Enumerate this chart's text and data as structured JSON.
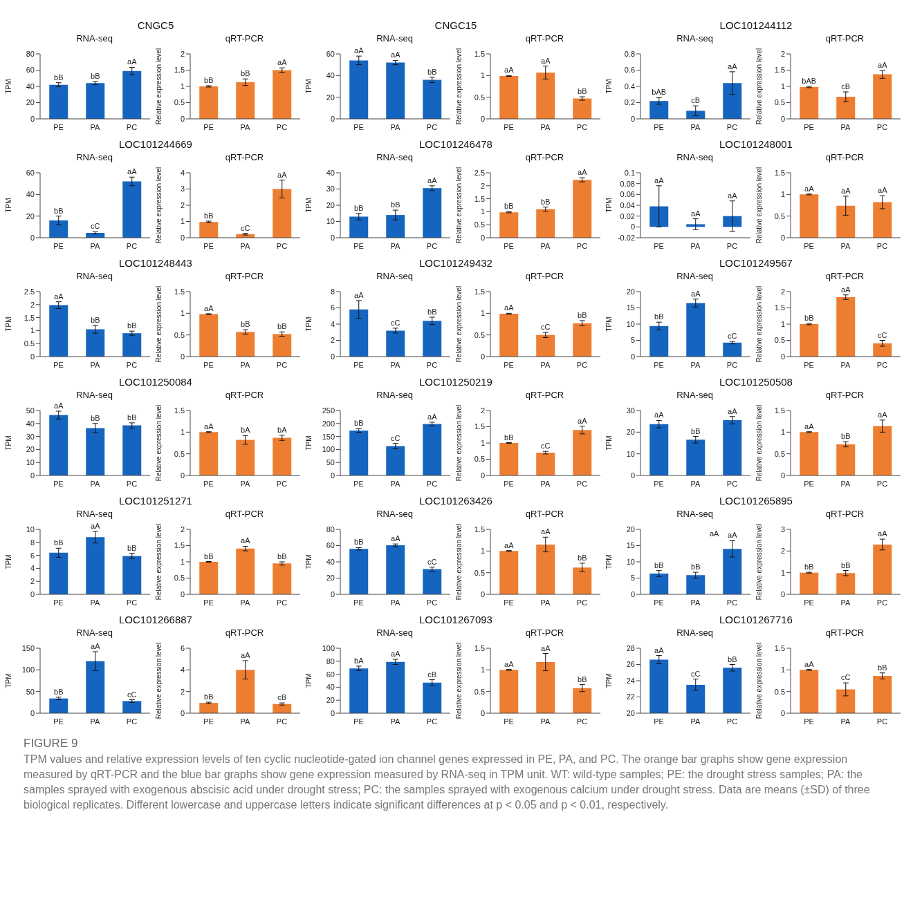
{
  "chart_data": [
    {
      "type": "bar",
      "title": "CNGC5",
      "subtitle": "RNA-seq",
      "ylabel": "TPM",
      "categories": [
        "PE",
        "PA",
        "PC"
      ],
      "values": [
        42,
        44,
        59
      ],
      "errors": [
        2.5,
        2,
        4.5
      ],
      "value_labels": [
        "bB",
        "bB",
        "aA"
      ],
      "color": "#1565c0",
      "ylim": [
        0,
        80
      ],
      "yticks": [
        0,
        20,
        40,
        60,
        80
      ]
    },
    {
      "type": "bar",
      "subtitle": "qRT-PCR",
      "ylabel": "Relative expression level",
      "categories": [
        "PE",
        "PA",
        "PC"
      ],
      "values": [
        1,
        1.13,
        1.5
      ],
      "errors": [
        0.02,
        0.1,
        0.07
      ],
      "value_labels": [
        "bB",
        "bB",
        "aA"
      ],
      "color": "#ed7d31",
      "ylim": [
        0,
        2
      ],
      "yticks": [
        0,
        0.5,
        1,
        1.5,
        2
      ]
    },
    {
      "type": "bar",
      "title": "CNGC15",
      "subtitle": "RNA-seq",
      "ylabel": "TPM",
      "categories": [
        "PE",
        "PA",
        "PC"
      ],
      "values": [
        54,
        52,
        36
      ],
      "errors": [
        4,
        2,
        2.5
      ],
      "value_labels": [
        "aA",
        "aA",
        "bB"
      ],
      "color": "#1565c0",
      "ylim": [
        0,
        60
      ],
      "yticks": [
        0,
        20,
        40,
        60
      ]
    },
    {
      "type": "bar",
      "subtitle": "qRT-PCR",
      "ylabel": "Relative expression level",
      "categories": [
        "PE",
        "PA",
        "PC"
      ],
      "values": [
        0.99,
        1.07,
        0.47
      ],
      "errors": [
        0.01,
        0.15,
        0.04
      ],
      "value_labels": [
        "aA",
        "aA",
        "bB"
      ],
      "color": "#ed7d31",
      "ylim": [
        0,
        1.5
      ],
      "yticks": [
        0,
        0.5,
        1,
        1.5
      ]
    },
    {
      "type": "bar",
      "title": "LOC101244112",
      "subtitle": "RNA-seq",
      "ylabel": "TPM",
      "categories": [
        "PE",
        "PA",
        "PC"
      ],
      "values": [
        0.22,
        0.1,
        0.44
      ],
      "errors": [
        0.04,
        0.06,
        0.14
      ],
      "value_labels": [
        "bAB",
        "cB",
        "aA"
      ],
      "color": "#1565c0",
      "ylim": [
        0,
        0.8
      ],
      "yticks": [
        0,
        0.2,
        0.4,
        0.6,
        0.8
      ]
    },
    {
      "type": "bar",
      "subtitle": "qRT-PCR",
      "ylabel": "Relative expression level",
      "categories": [
        "PE",
        "PA",
        "PC"
      ],
      "values": [
        0.98,
        0.68,
        1.37
      ],
      "errors": [
        0.02,
        0.15,
        0.12
      ],
      "value_labels": [
        "bAB",
        "cB",
        "aA"
      ],
      "color": "#ed7d31",
      "ylim": [
        0,
        2
      ],
      "yticks": [
        0,
        0.5,
        1,
        1.5,
        2
      ]
    },
    {
      "type": "bar",
      "title": "LOC101244669",
      "subtitle": "RNA-seq",
      "ylabel": "TPM",
      "categories": [
        "PE",
        "PA",
        "PC"
      ],
      "values": [
        16,
        4.5,
        52
      ],
      "errors": [
        4,
        1,
        4
      ],
      "value_labels": [
        "bB",
        "cC",
        "aA"
      ],
      "color": "#1565c0",
      "ylim": [
        0,
        60
      ],
      "yticks": [
        0,
        20,
        40,
        60
      ]
    },
    {
      "type": "bar",
      "subtitle": "qRT-PCR",
      "ylabel": "Relative expression level",
      "categories": [
        "PE",
        "PA",
        "PC"
      ],
      "values": [
        0.97,
        0.22,
        3
      ],
      "errors": [
        0.05,
        0.05,
        0.55
      ],
      "value_labels": [
        "bB",
        "cC",
        "aA"
      ],
      "color": "#ed7d31",
      "ylim": [
        0,
        4
      ],
      "yticks": [
        0,
        1,
        2,
        3,
        4
      ]
    },
    {
      "type": "bar",
      "title": "LOC101246478",
      "subtitle": "RNA-seq",
      "ylabel": "TPM",
      "categories": [
        "PE",
        "PA",
        "PC"
      ],
      "values": [
        13,
        14,
        30.5
      ],
      "errors": [
        2,
        3,
        1.5
      ],
      "value_labels": [
        "bB",
        "bB",
        "aA"
      ],
      "color": "#1565c0",
      "ylim": [
        0,
        40
      ],
      "yticks": [
        0,
        10,
        20,
        30,
        40
      ]
    },
    {
      "type": "bar",
      "subtitle": "qRT-PCR",
      "ylabel": "Relative expression level",
      "categories": [
        "PE",
        "PA",
        "PC"
      ],
      "values": [
        0.98,
        1.1,
        2.23
      ],
      "errors": [
        0.02,
        0.08,
        0.08
      ],
      "value_labels": [
        "bB",
        "bB",
        "aA"
      ],
      "color": "#ed7d31",
      "ylim": [
        0,
        2.5
      ],
      "yticks": [
        0,
        0.5,
        1,
        1.5,
        2,
        2.5
      ]
    },
    {
      "type": "bar",
      "title": "LOC101248001",
      "subtitle": "RNA-seq",
      "ylabel": "TPM",
      "categories": [
        "PE",
        "PA",
        "PC"
      ],
      "values": [
        0.038,
        0.005,
        0.02
      ],
      "errors": [
        0.038,
        0.01,
        0.028
      ],
      "value_labels": [
        "aA",
        "aA",
        "aA"
      ],
      "color": "#1565c0",
      "ylim": [
        -0.02,
        0.1
      ],
      "yticks": [
        -0.02,
        0,
        0.02,
        0.04,
        0.06,
        0.08,
        0.1
      ]
    },
    {
      "type": "bar",
      "subtitle": "qRT-PCR",
      "ylabel": "Relative expression level",
      "categories": [
        "PE",
        "PA",
        "PC"
      ],
      "values": [
        1,
        0.74,
        0.82
      ],
      "errors": [
        0.01,
        0.22,
        0.15
      ],
      "value_labels": [
        "aA",
        "aA",
        "aA"
      ],
      "color": "#ed7d31",
      "ylim": [
        0,
        1.5
      ],
      "yticks": [
        0,
        0.5,
        1,
        1.5
      ]
    },
    {
      "type": "bar",
      "title": "LOC101248443",
      "subtitle": "RNA-seq",
      "ylabel": "TPM",
      "categories": [
        "PE",
        "PA",
        "PC"
      ],
      "values": [
        1.98,
        1.05,
        0.9
      ],
      "errors": [
        0.13,
        0.15,
        0.08
      ],
      "value_labels": [
        "aA",
        "bB",
        "bB"
      ],
      "color": "#1565c0",
      "ylim": [
        0,
        2.5
      ],
      "yticks": [
        0,
        0.5,
        1,
        1.5,
        2,
        2.5
      ]
    },
    {
      "type": "bar",
      "subtitle": "qRT-PCR",
      "ylabel": "Relative expression level",
      "categories": [
        "PE",
        "PA",
        "PC"
      ],
      "values": [
        0.98,
        0.57,
        0.52
      ],
      "errors": [
        0.01,
        0.05,
        0.05
      ],
      "value_labels": [
        "aA",
        "bB",
        "bB"
      ],
      "color": "#ed7d31",
      "ylim": [
        0,
        1.5
      ],
      "yticks": [
        0,
        0.5,
        1,
        1.5
      ]
    },
    {
      "type": "bar",
      "title": "LOC101249432",
      "subtitle": "RNA-seq",
      "ylabel": "TPM",
      "categories": [
        "PE",
        "PA",
        "PC"
      ],
      "values": [
        5.8,
        3.2,
        4.4
      ],
      "errors": [
        1.1,
        0.3,
        0.45
      ],
      "value_labels": [
        "aA",
        "cC",
        "bB"
      ],
      "color": "#1565c0",
      "ylim": [
        0,
        8
      ],
      "yticks": [
        0,
        2,
        4,
        6,
        8
      ]
    },
    {
      "type": "bar",
      "subtitle": "qRT-PCR",
      "ylabel": "Relative expression level",
      "categories": [
        "PE",
        "PA",
        "PC"
      ],
      "values": [
        0.99,
        0.5,
        0.77
      ],
      "errors": [
        0.01,
        0.06,
        0.06
      ],
      "value_labels": [
        "aA",
        "cC",
        "bB"
      ],
      "color": "#ed7d31",
      "ylim": [
        0,
        1.5
      ],
      "yticks": [
        0,
        0.5,
        1,
        1.5
      ]
    },
    {
      "type": "bar",
      "title": "LOC101249567",
      "subtitle": "RNA-seq",
      "ylabel": "TPM",
      "categories": [
        "PE",
        "PA",
        "PC"
      ],
      "values": [
        9.4,
        16.5,
        4.3
      ],
      "errors": [
        1.2,
        1.2,
        0.4
      ],
      "value_labels": [
        "bB",
        "aA",
        "cC"
      ],
      "color": "#1565c0",
      "ylim": [
        0,
        20
      ],
      "yticks": [
        0,
        5,
        10,
        15,
        20
      ]
    },
    {
      "type": "bar",
      "subtitle": "qRT-PCR",
      "ylabel": "Relative expression level",
      "categories": [
        "PE",
        "PA",
        "PC"
      ],
      "values": [
        1,
        1.83,
        0.41
      ],
      "errors": [
        0.02,
        0.07,
        0.09
      ],
      "value_labels": [
        "bB",
        "aA",
        "cC"
      ],
      "color": "#ed7d31",
      "ylim": [
        0,
        2
      ],
      "yticks": [
        0,
        0.5,
        1,
        1.5,
        2
      ]
    },
    {
      "type": "bar",
      "title": "LOC101250084",
      "subtitle": "RNA-seq",
      "ylabel": "TPM",
      "categories": [
        "PE",
        "PA",
        "PC"
      ],
      "values": [
        46.5,
        36.5,
        38.5
      ],
      "errors": [
        3,
        3.5,
        2
      ],
      "value_labels": [
        "aA",
        "bB",
        "bB"
      ],
      "color": "#1565c0",
      "ylim": [
        0,
        50
      ],
      "yticks": [
        0,
        10,
        20,
        30,
        40,
        50
      ]
    },
    {
      "type": "bar",
      "subtitle": "qRT-PCR",
      "ylabel": "Relative expression level",
      "categories": [
        "PE",
        "PA",
        "PC"
      ],
      "values": [
        1,
        0.82,
        0.87
      ],
      "errors": [
        0.01,
        0.1,
        0.06
      ],
      "value_labels": [
        "aA",
        "bA",
        "bA"
      ],
      "color": "#ed7d31",
      "ylim": [
        0,
        1.5
      ],
      "yticks": [
        0,
        0.5,
        1,
        1.5
      ]
    },
    {
      "type": "bar",
      "title": "LOC101250219",
      "subtitle": "RNA-seq",
      "ylabel": "TPM",
      "categories": [
        "PE",
        "PA",
        "PC"
      ],
      "values": [
        173,
        113,
        198
      ],
      "errors": [
        7,
        10,
        7
      ],
      "value_labels": [
        "bB",
        "cC",
        "aA"
      ],
      "color": "#1565c0",
      "ylim": [
        0,
        250
      ],
      "yticks": [
        0,
        50,
        100,
        150,
        200,
        250
      ]
    },
    {
      "type": "bar",
      "subtitle": "qRT-PCR",
      "ylabel": "Relative expression level",
      "categories": [
        "PE",
        "PA",
        "PC"
      ],
      "values": [
        1,
        0.7,
        1.4
      ],
      "errors": [
        0.01,
        0.04,
        0.12
      ],
      "value_labels": [
        "bB",
        "cC",
        "aA"
      ],
      "color": "#ed7d31",
      "ylim": [
        0,
        2
      ],
      "yticks": [
        0,
        0.5,
        1,
        1.5,
        2
      ]
    },
    {
      "type": "bar",
      "title": "LOC101250508",
      "subtitle": "RNA-seq",
      "ylabel": "TPM",
      "categories": [
        "PE",
        "PA",
        "PC"
      ],
      "values": [
        23.7,
        16.5,
        25.5
      ],
      "errors": [
        1.7,
        1.5,
        1.7
      ],
      "value_labels": [
        "aA",
        "bB",
        "aA"
      ],
      "color": "#1565c0",
      "ylim": [
        0,
        30
      ],
      "yticks": [
        0,
        10,
        20,
        30
      ]
    },
    {
      "type": "bar",
      "subtitle": "qRT-PCR",
      "ylabel": "Relative expression level",
      "categories": [
        "PE",
        "PA",
        "PC"
      ],
      "values": [
        1,
        0.72,
        1.14
      ],
      "errors": [
        0.01,
        0.06,
        0.14
      ],
      "value_labels": [
        "aA",
        "bB",
        "aA"
      ],
      "color": "#ed7d31",
      "ylim": [
        0,
        1.5
      ],
      "yticks": [
        0,
        0.5,
        1,
        1.5
      ]
    },
    {
      "type": "bar",
      "title": "LOC101251271",
      "subtitle": "RNA-seq",
      "ylabel": "TPM",
      "categories": [
        "PE",
        "PA",
        "PC"
      ],
      "values": [
        6.4,
        8.8,
        5.9
      ],
      "errors": [
        0.7,
        0.9,
        0.4
      ],
      "value_labels": [
        "bB",
        "aA",
        "bB"
      ],
      "color": "#1565c0",
      "ylim": [
        0,
        10
      ],
      "yticks": [
        0,
        2,
        4,
        6,
        8,
        10
      ]
    },
    {
      "type": "bar",
      "subtitle": "qRT-PCR",
      "ylabel": "Relative expression level",
      "categories": [
        "PE",
        "PA",
        "PC"
      ],
      "values": [
        1,
        1.41,
        0.95
      ],
      "errors": [
        0.01,
        0.07,
        0.05
      ],
      "value_labels": [
        "bB",
        "aA",
        "bB"
      ],
      "color": "#ed7d31",
      "ylim": [
        0,
        2
      ],
      "yticks": [
        0,
        0.5,
        1,
        1.5,
        2
      ]
    },
    {
      "type": "bar",
      "title": "LOC101263426",
      "subtitle": "RNA-seq",
      "ylabel": "TPM",
      "categories": [
        "PE",
        "PA",
        "PC"
      ],
      "values": [
        56,
        60.5,
        31
      ],
      "errors": [
        1.5,
        1.5,
        2.5
      ],
      "value_labels": [
        "bB",
        "aA",
        "cC"
      ],
      "color": "#1565c0",
      "ylim": [
        0,
        80
      ],
      "yticks": [
        0,
        20,
        40,
        60,
        80
      ]
    },
    {
      "type": "bar",
      "subtitle": "qRT-PCR",
      "ylabel": "Relative expression level",
      "categories": [
        "PE",
        "PA",
        "PC"
      ],
      "values": [
        1,
        1.15,
        0.62
      ],
      "errors": [
        0.01,
        0.17,
        0.1
      ],
      "value_labels": [
        "aA",
        "aA",
        "bB"
      ],
      "color": "#ed7d31",
      "ylim": [
        0,
        1.5
      ],
      "yticks": [
        0,
        0.5,
        1,
        1.5
      ]
    },
    {
      "type": "bar",
      "title": "LOC101265895",
      "subtitle": "RNA-seq",
      "ylabel": "TPM",
      "categories": [
        "PE",
        "PA",
        "PC"
      ],
      "values": [
        6.4,
        5.9,
        14
      ],
      "errors": [
        0.9,
        0.9,
        2.5
      ],
      "value_labels": [
        "bB",
        "bB",
        "aA"
      ],
      "color": "#1565c0",
      "ylim": [
        0,
        20
      ],
      "yticks": [
        0,
        5,
        10,
        15,
        20
      ],
      "annotations": [
        "aA"
      ]
    },
    {
      "type": "bar",
      "subtitle": "qRT-PCR",
      "ylabel": "Relative expression level",
      "categories": [
        "PE",
        "PA",
        "PC"
      ],
      "values": [
        1,
        0.98,
        2.3
      ],
      "errors": [
        0.02,
        0.12,
        0.25
      ],
      "value_labels": [
        "bB",
        "bB",
        "aA"
      ],
      "color": "#ed7d31",
      "ylim": [
        0,
        3
      ],
      "yticks": [
        0,
        1,
        2,
        3
      ]
    },
    {
      "type": "bar",
      "title": "LOC101266887",
      "subtitle": "RNA-seq",
      "ylabel": "TPM",
      "categories": [
        "PE",
        "PA",
        "PC"
      ],
      "values": [
        34,
        120,
        28
      ],
      "errors": [
        3,
        22,
        3
      ],
      "value_labels": [
        "bB",
        "aA",
        "cC"
      ],
      "color": "#1565c0",
      "ylim": [
        0,
        150
      ],
      "yticks": [
        0,
        50,
        100,
        150
      ]
    },
    {
      "type": "bar",
      "subtitle": "qRT-PCR",
      "ylabel": "Relative expression level",
      "categories": [
        "PE",
        "PA",
        "PC"
      ],
      "values": [
        0.95,
        4,
        0.85
      ],
      "errors": [
        0.07,
        0.85,
        0.1
      ],
      "value_labels": [
        "bB",
        "aA",
        "cB"
      ],
      "color": "#ed7d31",
      "ylim": [
        0,
        6
      ],
      "yticks": [
        0,
        2,
        4,
        6
      ]
    },
    {
      "type": "bar",
      "title": "LOC101267093",
      "subtitle": "RNA-seq",
      "ylabel": "TPM",
      "categories": [
        "PE",
        "PA",
        "PC"
      ],
      "values": [
        69,
        79,
        47
      ],
      "errors": [
        3.5,
        4,
        4.5
      ],
      "value_labels": [
        "bA",
        "aA",
        "cB"
      ],
      "color": "#1565c0",
      "ylim": [
        0,
        100
      ],
      "yticks": [
        0,
        20,
        40,
        60,
        80,
        100
      ]
    },
    {
      "type": "bar",
      "subtitle": "qRT-PCR",
      "ylabel": "Relative expression level",
      "categories": [
        "PE",
        "PA",
        "PC"
      ],
      "values": [
        1,
        1.18,
        0.58
      ],
      "errors": [
        0.01,
        0.2,
        0.08
      ],
      "value_labels": [
        "aA",
        "aA",
        "bB"
      ],
      "color": "#ed7d31",
      "ylim": [
        0,
        1.5
      ],
      "yticks": [
        0,
        0.5,
        1,
        1.5
      ]
    },
    {
      "type": "bar",
      "title": "LOC101267716",
      "subtitle": "RNA-seq",
      "ylabel": "TPM",
      "categories": [
        "PE",
        "PA",
        "PC"
      ],
      "values": [
        26.6,
        23.5,
        25.6
      ],
      "errors": [
        0.5,
        0.7,
        0.4
      ],
      "value_labels": [
        "aA",
        "cC",
        "bB"
      ],
      "color": "#1565c0",
      "ylim": [
        20,
        28
      ],
      "yticks": [
        20,
        22,
        24,
        26,
        28
      ]
    },
    {
      "type": "bar",
      "subtitle": "qRT-PCR",
      "ylabel": "Relative expression level",
      "categories": [
        "PE",
        "PA",
        "PC"
      ],
      "values": [
        1,
        0.55,
        0.86
      ],
      "errors": [
        0.01,
        0.15,
        0.07
      ],
      "value_labels": [
        "aA",
        "cC",
        "bB"
      ],
      "color": "#ed7d31",
      "ylim": [
        0,
        1.5
      ],
      "yticks": [
        0,
        0.5,
        1,
        1.5
      ]
    },
    {
      "type": "other",
      "title": "FIGURE 9",
      "annotations": [
        "TPM values and relative expression levels of ten cyclic nucleotide-gated ion channel genes expressed in PE, PA, and PC. The orange bar graphs show gene expression measured by qRT-PCR and the blue bar graphs show gene expression measured by RNA-seq in TPM unit. WT: wild-type samples; PE: the drought stress samples; PA: the samples sprayed with exogenous abscisic acid under drought stress; PC: the samples sprayed with exogenous calcium under drought stress. Data are means (±SD) of three biological replicates. Different lowercase and uppercase letters indicate significant differences at p < 0.05 and p < 0.01, respectively."
      ]
    }
  ]
}
